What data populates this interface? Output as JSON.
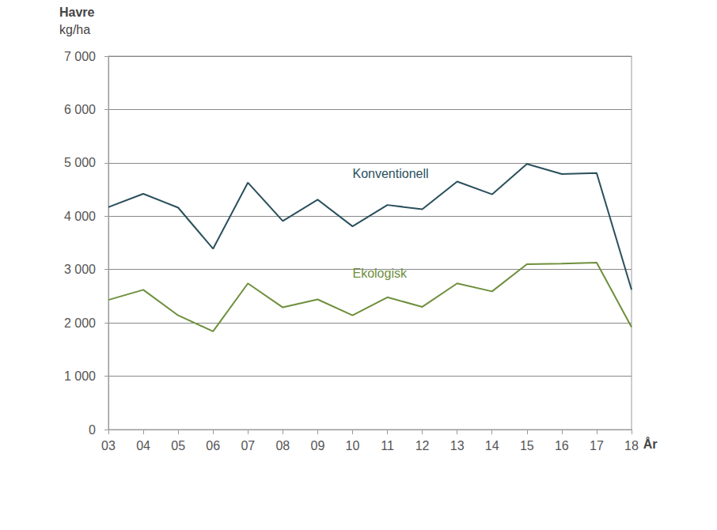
{
  "chart_data": {
    "type": "line",
    "title": "Havre",
    "y_label": "kg/ha",
    "x_label": "År",
    "categories": [
      "03",
      "04",
      "05",
      "06",
      "07",
      "08",
      "09",
      "10",
      "11",
      "12",
      "13",
      "14",
      "15",
      "16",
      "17",
      "18"
    ],
    "series": [
      {
        "name": "Konventionell",
        "color": "#2a4f5c",
        "values": [
          4170,
          4420,
          4160,
          3390,
          4630,
          3910,
          4310,
          3810,
          4210,
          4130,
          4650,
          4410,
          4980,
          4790,
          4810,
          2620
        ]
      },
      {
        "name": "Ekologisk",
        "color": "#6e8f3c",
        "values": [
          2430,
          2620,
          2140,
          1840,
          2740,
          2290,
          2440,
          2140,
          2480,
          2300,
          2740,
          2590,
          3100,
          3110,
          3130,
          1920
        ]
      }
    ],
    "ylim": [
      0,
      7000
    ],
    "yticks": [
      0,
      {
        "value": 1000,
        "label": "1 000"
      },
      {
        "value": 2000,
        "label": "2 000"
      },
      {
        "value": 3000,
        "label": "3 000"
      },
      {
        "value": 4000,
        "label": "4 000"
      },
      {
        "value": 5000,
        "label": "5 000"
      },
      {
        "value": 6000,
        "label": "6 000"
      },
      {
        "value": 7000,
        "label": "7 000"
      }
    ],
    "grid": true
  }
}
